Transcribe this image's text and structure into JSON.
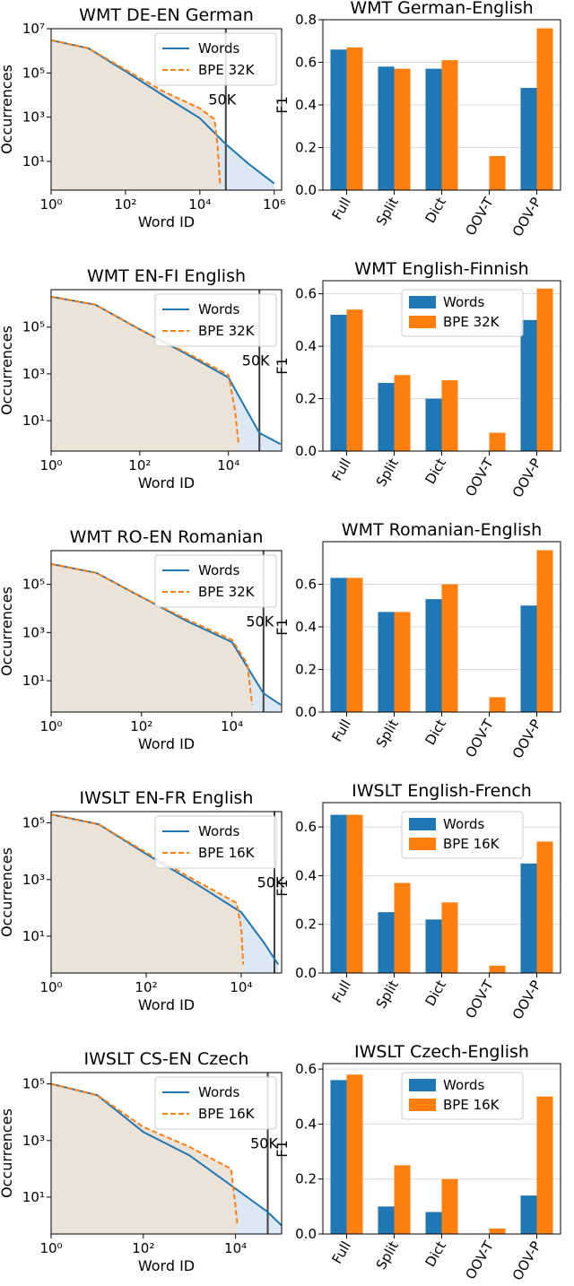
{
  "colors": {
    "words": "#1f77b4",
    "bpe": "#ff7f0e",
    "words_fill": "#dce9f4",
    "overlap_fill": "#ece3d8",
    "vline": "#404040",
    "grid": "#d9d9d9"
  },
  "chart_data": [
    {
      "type": "line",
      "title": "WMT DE-EN German",
      "xlabel": "Word ID",
      "ylabel": "Occurrences",
      "xscale": "log",
      "yscale": "log",
      "xlim_exp": [
        0,
        6.2
      ],
      "ylim_exp": [
        -0.3,
        7
      ],
      "xticks_exp": [
        0,
        2,
        4,
        6
      ],
      "yticks_exp": [
        1,
        3,
        5,
        7
      ],
      "annotation": "50K",
      "vline_x": 50000,
      "legend": {
        "loc": "upper right"
      },
      "series": [
        {
          "name": "Words",
          "style": "solid",
          "points": [
            [
              1,
              3000000
            ],
            [
              10,
              1300000
            ],
            [
              100,
              120000
            ],
            [
              1000,
              10000
            ],
            [
              10000,
              900
            ],
            [
              50000,
              60
            ],
            [
              200000,
              8
            ],
            [
              1000000,
              1
            ]
          ]
        },
        {
          "name": "BPE 32K",
          "style": "dashed",
          "points": [
            [
              1,
              3000000
            ],
            [
              10,
              1300000
            ],
            [
              100,
              140000
            ],
            [
              1000,
              15000
            ],
            [
              10000,
              2500
            ],
            [
              25000,
              800
            ],
            [
              30000,
              50
            ],
            [
              35000,
              1
            ]
          ]
        }
      ]
    },
    {
      "type": "bar",
      "title": "WMT German-English",
      "ylabel": "F1",
      "ylim": [
        0,
        0.8
      ],
      "yticks": [
        0.0,
        0.2,
        0.4,
        0.6,
        0.8
      ],
      "categories": [
        "Full",
        "Split",
        "Dict",
        "OOV-T",
        "OOV-P"
      ],
      "legend": false,
      "series": [
        {
          "name": "Words",
          "values": [
            0.66,
            0.58,
            0.57,
            0.0,
            0.48
          ]
        },
        {
          "name": "BPE 32K",
          "values": [
            0.67,
            0.57,
            0.61,
            0.16,
            0.76
          ]
        }
      ]
    },
    {
      "type": "line",
      "title": "WMT EN-FI English",
      "xlabel": "Word ID",
      "ylabel": "Occurrences",
      "xscale": "log",
      "yscale": "log",
      "xlim_exp": [
        0,
        5.2
      ],
      "ylim_exp": [
        -0.3,
        6.6
      ],
      "xticks_exp": [
        0,
        2,
        4
      ],
      "yticks_exp": [
        1,
        3,
        5
      ],
      "annotation": "50K",
      "vline_x": 50000,
      "legend": {
        "loc": "upper right"
      },
      "series": [
        {
          "name": "Words",
          "style": "solid",
          "points": [
            [
              1,
              2000000
            ],
            [
              10,
              900000
            ],
            [
              100,
              80000
            ],
            [
              1000,
              8000
            ],
            [
              10000,
              700
            ],
            [
              50000,
              3
            ],
            [
              150000,
              1
            ]
          ]
        },
        {
          "name": "BPE 32K",
          "style": "dashed",
          "points": [
            [
              1,
              2000000
            ],
            [
              10,
              900000
            ],
            [
              100,
              80000
            ],
            [
              1000,
              9000
            ],
            [
              10000,
              900
            ],
            [
              14000,
              30
            ],
            [
              17000,
              1
            ]
          ]
        }
      ]
    },
    {
      "type": "bar",
      "title": "WMT English-Finnish",
      "ylabel": "F1",
      "ylim": [
        0,
        0.65
      ],
      "yticks": [
        0.0,
        0.2,
        0.4,
        0.6
      ],
      "categories": [
        "Full",
        "Split",
        "Dict",
        "OOV-T",
        "OOV-P"
      ],
      "legend": {
        "loc": "upper center"
      },
      "series": [
        {
          "name": "Words",
          "values": [
            0.52,
            0.26,
            0.2,
            0.0,
            0.5
          ]
        },
        {
          "name": "BPE 32K",
          "values": [
            0.54,
            0.29,
            0.27,
            0.07,
            0.62
          ]
        }
      ]
    },
    {
      "type": "line",
      "title": "WMT RO-EN Romanian",
      "xlabel": "Word ID",
      "ylabel": "Occurrences",
      "xscale": "log",
      "yscale": "log",
      "xlim_exp": [
        0,
        5.1
      ],
      "ylim_exp": [
        -0.3,
        6.4
      ],
      "xticks_exp": [
        0,
        2,
        4
      ],
      "yticks_exp": [
        1,
        3,
        5
      ],
      "annotation": "50K",
      "vline_x": 50000,
      "legend": {
        "loc": "upper right"
      },
      "series": [
        {
          "name": "Words",
          "style": "solid",
          "points": [
            [
              1,
              700000
            ],
            [
              10,
              300000
            ],
            [
              100,
              30000
            ],
            [
              1000,
              3000
            ],
            [
              10000,
              400
            ],
            [
              50000,
              3
            ],
            [
              120000,
              1
            ]
          ]
        },
        {
          "name": "BPE 32K",
          "style": "dashed",
          "points": [
            [
              1,
              700000
            ],
            [
              10,
              300000
            ],
            [
              100,
              30000
            ],
            [
              1000,
              3500
            ],
            [
              10000,
              500
            ],
            [
              22000,
              50
            ],
            [
              28000,
              1
            ]
          ]
        }
      ]
    },
    {
      "type": "bar",
      "title": "WMT Romanian-English",
      "ylabel": "F1",
      "ylim": [
        0,
        0.8
      ],
      "yticks": [
        0.0,
        0.2,
        0.4,
        0.6
      ],
      "categories": [
        "Full",
        "Split",
        "Dict",
        "OOV-T",
        "OOV-P"
      ],
      "legend": false,
      "series": [
        {
          "name": "Words",
          "values": [
            0.63,
            0.47,
            0.53,
            0.0,
            0.5
          ]
        },
        {
          "name": "BPE 32K",
          "values": [
            0.63,
            0.47,
            0.6,
            0.07,
            0.76
          ]
        }
      ]
    },
    {
      "type": "line",
      "title": "IWSLT EN-FR English",
      "xlabel": "Word ID",
      "ylabel": "Occurrences",
      "xscale": "log",
      "yscale": "log",
      "xlim_exp": [
        0,
        4.85
      ],
      "ylim_exp": [
        -0.3,
        5.4
      ],
      "xticks_exp": [
        0,
        2,
        4
      ],
      "yticks_exp": [
        1,
        3,
        5
      ],
      "annotation": "50K",
      "vline_x": 50000,
      "legend": {
        "loc": "upper right"
      },
      "series": [
        {
          "name": "Words",
          "style": "solid",
          "points": [
            [
              1,
              200000
            ],
            [
              10,
              90000
            ],
            [
              100,
              8000
            ],
            [
              1000,
              800
            ],
            [
              10000,
              70
            ],
            [
              30000,
              6
            ],
            [
              60000,
              1
            ]
          ]
        },
        {
          "name": "BPE 16K",
          "style": "dashed",
          "points": [
            [
              1,
              200000
            ],
            [
              10,
              90000
            ],
            [
              100,
              9000
            ],
            [
              1000,
              1000
            ],
            [
              8000,
              150
            ],
            [
              10000,
              20
            ],
            [
              11000,
              1
            ]
          ]
        }
      ]
    },
    {
      "type": "bar",
      "title": "IWSLT English-French",
      "ylabel": "F1",
      "ylim": [
        0,
        0.7
      ],
      "yticks": [
        0.0,
        0.2,
        0.4,
        0.6
      ],
      "categories": [
        "Full",
        "Split",
        "Dict",
        "OOV-T",
        "OOV-P"
      ],
      "legend": {
        "loc": "upper center"
      },
      "series": [
        {
          "name": "Words",
          "values": [
            0.65,
            0.25,
            0.22,
            0.0,
            0.45
          ]
        },
        {
          "name": "BPE 16K",
          "values": [
            0.65,
            0.37,
            0.29,
            0.03,
            0.54
          ]
        }
      ]
    },
    {
      "type": "line",
      "title": "IWSLT CS-EN Czech",
      "xlabel": "Word ID",
      "ylabel": "Occurrences",
      "xscale": "log",
      "yscale": "log",
      "xlim_exp": [
        0,
        5.0
      ],
      "ylim_exp": [
        -0.3,
        5.4
      ],
      "xticks_exp": [
        0,
        2,
        4
      ],
      "yticks_exp": [
        1,
        3,
        5
      ],
      "annotation": "50K",
      "vline_x": 50000,
      "legend": {
        "loc": "upper right"
      },
      "series": [
        {
          "name": "Words",
          "style": "solid",
          "points": [
            [
              1,
              100000
            ],
            [
              10,
              40000
            ],
            [
              100,
              2000
            ],
            [
              1000,
              300
            ],
            [
              10000,
              20
            ],
            [
              50000,
              3
            ],
            [
              100000,
              1
            ]
          ]
        },
        {
          "name": "BPE 16K",
          "style": "dashed",
          "points": [
            [
              1,
              100000
            ],
            [
              10,
              40000
            ],
            [
              100,
              3000
            ],
            [
              1000,
              600
            ],
            [
              8000,
              100
            ],
            [
              10000,
              5
            ],
            [
              11000,
              1
            ]
          ]
        }
      ]
    },
    {
      "type": "bar",
      "title": "IWSLT Czech-English",
      "ylabel": "F1",
      "ylim": [
        0,
        0.62
      ],
      "yticks": [
        0.0,
        0.2,
        0.4,
        0.6
      ],
      "categories": [
        "Full",
        "Split",
        "Dict",
        "OOV-T",
        "OOV-P"
      ],
      "legend": {
        "loc": "upper center"
      },
      "series": [
        {
          "name": "Words",
          "values": [
            0.56,
            0.1,
            0.08,
            0.0,
            0.14
          ]
        },
        {
          "name": "BPE 16K",
          "values": [
            0.58,
            0.25,
            0.2,
            0.02,
            0.5
          ]
        }
      ]
    }
  ]
}
